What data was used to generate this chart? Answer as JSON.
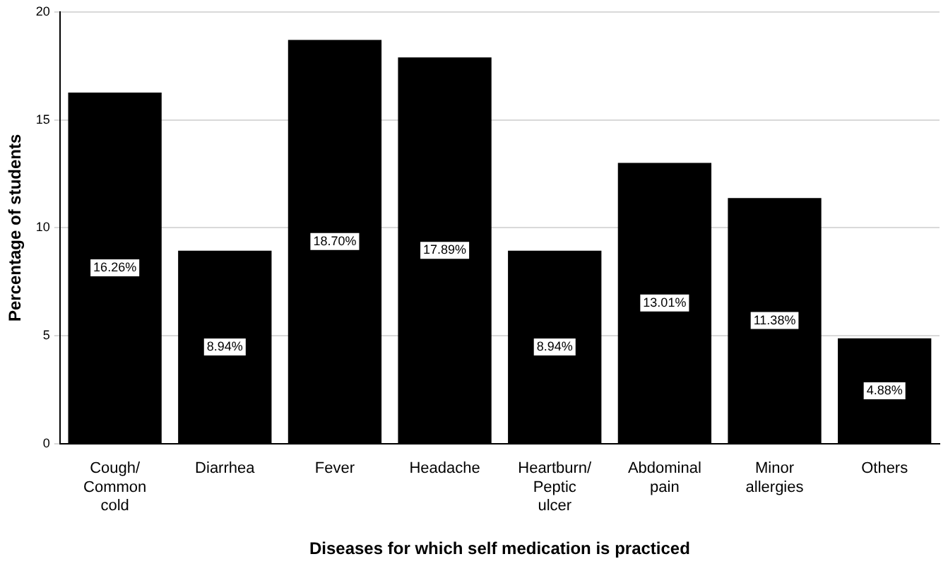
{
  "chart_data": {
    "type": "bar",
    "xlabel": "Diseases for which self medication is practiced",
    "ylabel": "Percentage of students",
    "categories": [
      "Cough/ Common cold",
      "Diarrhea",
      "Fever",
      "Headache",
      "Heartburn/ Peptic ulcer",
      "Abdominal pain",
      "Minor allergies",
      "Others"
    ],
    "values": [
      16.26,
      8.94,
      18.7,
      17.89,
      8.94,
      13.01,
      11.38,
      4.88
    ],
    "value_labels": [
      "16.26%",
      "8.94%",
      "18.70%",
      "17.89%",
      "8.94%",
      "13.01%",
      "11.38%",
      "4.88%"
    ],
    "color": "#000000",
    "ylim": [
      0,
      20
    ],
    "yticks": [
      0,
      5,
      10,
      15,
      20
    ],
    "grid": "y",
    "legend": false
  }
}
